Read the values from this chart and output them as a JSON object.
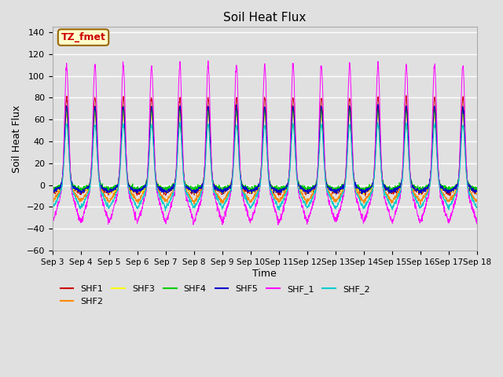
{
  "title": "Soil Heat Flux",
  "ylabel": "Soil Heat Flux",
  "xlabel": "Time",
  "annotation_text": "TZ_fmet",
  "annotation_bg": "#FFFFCC",
  "annotation_border": "#996600",
  "annotation_text_color": "#CC0000",
  "ylim": [
    -60,
    145
  ],
  "series_colors": {
    "SHF1": "#CC0000",
    "SHF2": "#FF8800",
    "SHF3": "#FFFF00",
    "SHF4": "#00CC00",
    "SHF5": "#0000CC",
    "SHF_1": "#FF00FF",
    "SHF_2": "#00CCCC"
  },
  "bg_color": "#E0E0E0",
  "plot_bg": "#E0E0E0",
  "grid_color": "#FFFFFF",
  "n_days": 15,
  "tick_positions": [
    0,
    1,
    2,
    3,
    4,
    5,
    6,
    7,
    8,
    9,
    10,
    11,
    12,
    13,
    14,
    15
  ],
  "tick_labels": [
    "Sep 3",
    "Sep 4",
    "Sep 5",
    "Sep 6",
    "Sep 7",
    "Sep 8",
    "Sep 9",
    "Sep 10",
    "Sep 11",
    "Sep 12",
    "Sep 13",
    "Sep 14",
    "Sep 15",
    "Sep 16",
    "Sep 17",
    "Sep 18"
  ],
  "yticks": [
    -60,
    -40,
    -20,
    0,
    20,
    40,
    60,
    80,
    100,
    120,
    140
  ]
}
